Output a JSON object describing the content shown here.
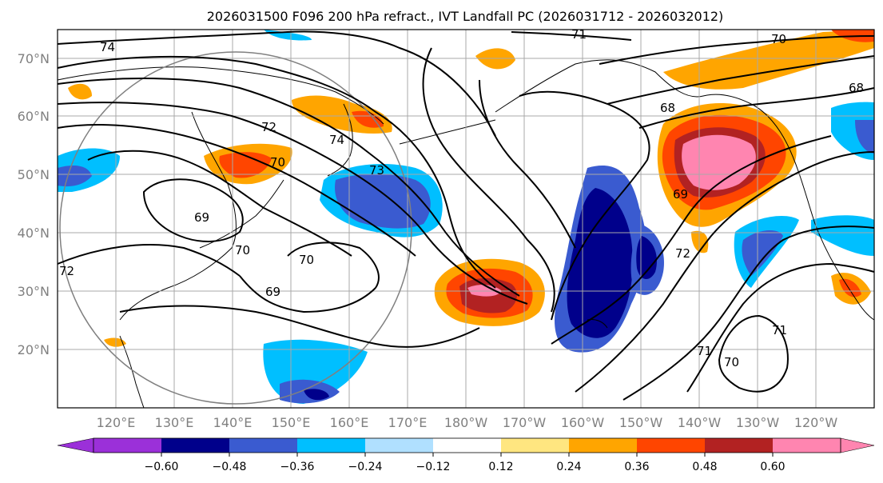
{
  "title": "2026031500 F096 200 hPa refract., IVT Landfall PC (2026031712 - 2026032012)",
  "lat_labels": [
    "70°N",
    "60°N",
    "50°N",
    "40°N",
    "30°N",
    "20°N"
  ],
  "lon_labels": [
    "120°E",
    "130°E",
    "140°E",
    "150°E",
    "160°E",
    "170°E",
    "180°W",
    "170°W",
    "160°W",
    "150°W",
    "140°W",
    "130°W",
    "120°W"
  ],
  "contour_labels": [
    "74",
    "71",
    "70",
    "68",
    "72",
    "74",
    "73",
    "70",
    "69",
    "70",
    "70",
    "69",
    "72",
    "69",
    "72",
    "71",
    "70",
    "71",
    "68"
  ],
  "colorbar": {
    "ticks": [
      "−0.60",
      "−0.48",
      "−0.36",
      "−0.24",
      "−0.12",
      "0.12",
      "0.24",
      "0.36",
      "0.48",
      "0.60"
    ],
    "colors": [
      "#9b30d9",
      "#00008b",
      "#3a5bd0",
      "#00bfff",
      "#b0e0ff",
      "#ffffff",
      "#ffe680",
      "#ffa500",
      "#ff4500",
      "#b22222",
      "#ff85b0",
      "#ff85b0"
    ]
  },
  "fill_colors": {
    "neg_strong": "#00008b",
    "neg_mid": "#3a5bd0",
    "neg_light": "#00bfff",
    "neg_faint": "#b0e0ff",
    "pos_faint": "#ffe680",
    "pos_light": "#ffa500",
    "pos_mid": "#ff4500",
    "pos_strong": "#b22222",
    "pos_max": "#ff85b0"
  }
}
